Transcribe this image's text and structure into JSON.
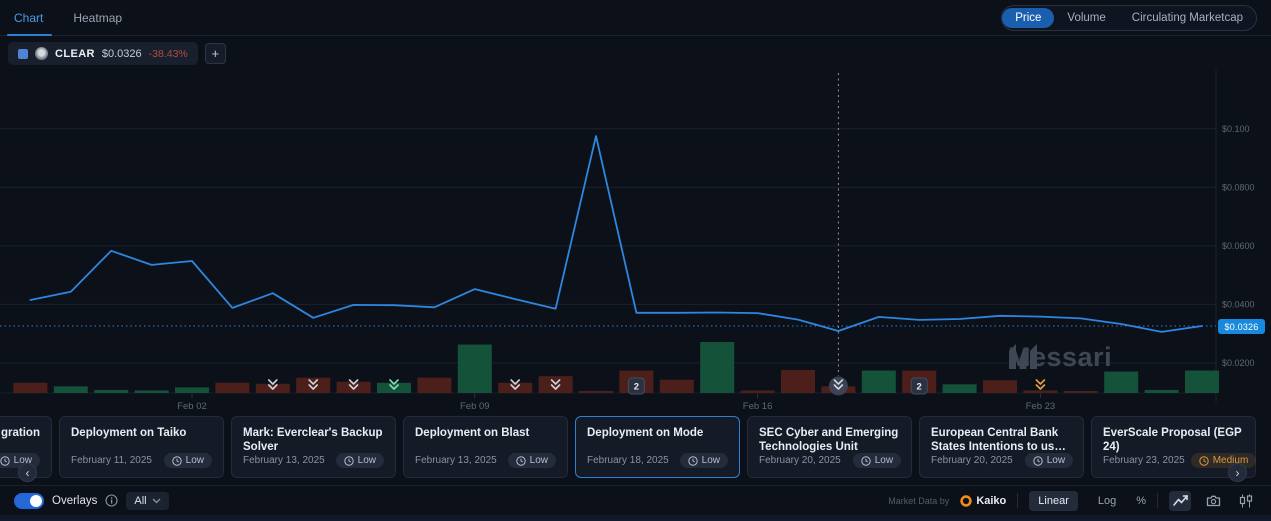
{
  "tabs": {
    "chart": "Chart",
    "heatmap": "Heatmap"
  },
  "metric_tabs": [
    {
      "label": "Price",
      "active": true
    },
    {
      "label": "Volume",
      "active": false
    },
    {
      "label": "Circulating Marketcap",
      "active": false
    }
  ],
  "token": {
    "symbol": "CLEAR",
    "price": "$0.0326",
    "change": "-38.43%",
    "add_label": "+"
  },
  "chart_data": {
    "type": "line+volume",
    "title": "CLEAR price chart with volume bars and event markers",
    "x": [
      "Jan 29",
      "Jan 30",
      "Jan 31",
      "Feb 01",
      "Feb 02",
      "Feb 03",
      "Feb 04",
      "Feb 05",
      "Feb 06",
      "Feb 07",
      "Feb 08",
      "Feb 09",
      "Feb 10",
      "Feb 11",
      "Feb 12",
      "Feb 13",
      "Feb 14",
      "Feb 15",
      "Feb 16",
      "Feb 17",
      "Feb 18",
      "Feb 19",
      "Feb 20",
      "Feb 21",
      "Feb 22",
      "Feb 23",
      "Feb 24",
      "Feb 25",
      "Feb 26",
      "Feb 27"
    ],
    "price": [
      0.0415,
      0.0443,
      0.0583,
      0.0535,
      0.0548,
      0.0388,
      0.0438,
      0.0354,
      0.0398,
      0.0397,
      0.039,
      0.0452,
      0.0418,
      0.0385,
      0.0975,
      0.0371,
      0.0371,
      0.0372,
      0.037,
      0.0348,
      0.0309,
      0.0357,
      0.0347,
      0.035,
      0.0361,
      0.0358,
      0.0352,
      0.0333,
      0.0306,
      0.0326
    ],
    "volume_rel": [
      0.2,
      0.13,
      0.06,
      0.05,
      0.11,
      0.2,
      0.18,
      0.3,
      0.22,
      0.2,
      0.3,
      0.95,
      0.2,
      0.33,
      0.04,
      0.44,
      0.26,
      1.0,
      0.05,
      0.45,
      0.13,
      0.44,
      0.44,
      0.17,
      0.25,
      0.05,
      0.03,
      0.42,
      0.06,
      0.44
    ],
    "volume_dir": [
      "down",
      "up",
      "up",
      "up",
      "up",
      "down",
      "down",
      "down",
      "down",
      "up",
      "down",
      "up",
      "down",
      "down",
      "down",
      "down",
      "down",
      "up",
      "down",
      "down",
      "down",
      "up",
      "down",
      "up",
      "down",
      "down",
      "down",
      "up",
      "up",
      "up"
    ],
    "y_ticks": [
      {
        "value": 0.1,
        "label": "$0.100"
      },
      {
        "value": 0.08,
        "label": "$0.0800"
      },
      {
        "value": 0.06,
        "label": "$0.0600"
      },
      {
        "value": 0.04,
        "label": "$0.0400"
      },
      {
        "value": 0.02,
        "label": "$0.0200"
      }
    ],
    "x_ticks": [
      {
        "index": 4,
        "label": "Feb 02"
      },
      {
        "index": 11,
        "label": "Feb 09"
      },
      {
        "index": 18,
        "label": "Feb 16"
      },
      {
        "index": 25,
        "label": "Feb 23"
      }
    ],
    "ylim": [
      0.0097,
      0.1201
    ],
    "current_price": 0.0326,
    "current_price_label": "$0.0326",
    "event_markers": [
      {
        "index": 6,
        "kind": "chevron",
        "variant": "light"
      },
      {
        "index": 7,
        "kind": "chevron",
        "variant": "light"
      },
      {
        "index": 8,
        "kind": "chevron",
        "variant": "light"
      },
      {
        "index": 9,
        "kind": "chevron",
        "variant": "green"
      },
      {
        "index": 12,
        "kind": "chevron",
        "variant": "light"
      },
      {
        "index": 13,
        "kind": "chevron",
        "variant": "light"
      },
      {
        "index": 15,
        "kind": "count",
        "label": "2"
      },
      {
        "index": 20,
        "kind": "selected"
      },
      {
        "index": 22,
        "kind": "count",
        "label": "2"
      },
      {
        "index": 25,
        "kind": "chevron",
        "variant": "orange"
      }
    ],
    "colors": {
      "line": "#2e86e0",
      "up": "#15523a",
      "down": "#4d1f1a",
      "grid": "#1a2230",
      "tick_text": "#5d6878",
      "chevron_light": "#cdd5df",
      "chevron_green": "#7fe0b4",
      "chevron_orange": "#e8a33d"
    },
    "legend_position": "none",
    "grid": "horizontal"
  },
  "watermark": {
    "text": "Messari"
  },
  "events": {
    "prev_label": "‹",
    "next_label": "›",
    "cards": [
      {
        "title": "gration",
        "date": "",
        "severity": "Low",
        "partial": true,
        "selected": false,
        "source_icon": false
      },
      {
        "title": "Deployment on Taiko",
        "date": "February 11, 2025",
        "severity": "Low",
        "partial": false,
        "selected": false,
        "source_icon": false
      },
      {
        "title": "Mark: Everclear's Backup Solver",
        "date": "February 13, 2025",
        "severity": "Low",
        "partial": false,
        "selected": false,
        "source_icon": false
      },
      {
        "title": "Deployment on Blast",
        "date": "February 13, 2025",
        "severity": "Low",
        "partial": false,
        "selected": false,
        "source_icon": false
      },
      {
        "title": "Deployment on Mode",
        "date": "February 18, 2025",
        "severity": "Low",
        "partial": false,
        "selected": true,
        "source_icon": false
      },
      {
        "title": "SEC Cyber and Emerging Technologies Unit",
        "date": "February 20, 2025",
        "severity": "Low",
        "partial": false,
        "selected": false,
        "source_icon": true
      },
      {
        "title": "European Central Bank States Intentions to use Distributed…",
        "date": "February 20, 2025",
        "severity": "Low",
        "partial": false,
        "selected": false,
        "source_icon": true
      },
      {
        "title": "EverScale Proposal (EGP 24)",
        "date": "February 23, 2025",
        "severity": "Medium",
        "partial": false,
        "selected": false,
        "source_icon": false
      }
    ]
  },
  "footer": {
    "overlays_label": "Overlays",
    "filter_value": "All",
    "attribution": "Market Data by",
    "provider": "Kaiko",
    "scale_linear": "Linear",
    "scale_log": "Log",
    "percent_label": "%"
  }
}
